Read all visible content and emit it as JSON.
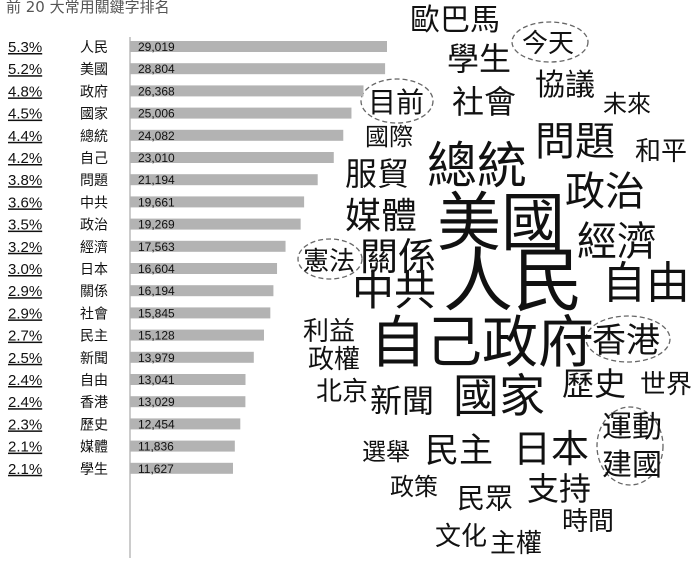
{
  "title": "前 20 大常用關鍵字排名",
  "chart_data": {
    "type": "bar",
    "orientation": "horizontal",
    "categories": [
      "人民",
      "美國",
      "政府",
      "國家",
      "總統",
      "自己",
      "問題",
      "中共",
      "政治",
      "經濟",
      "日本",
      "關係",
      "社會",
      "民主",
      "新聞",
      "自由",
      "香港",
      "歷史",
      "媒體",
      "學生"
    ],
    "values": [
      29019,
      28804,
      26368,
      25006,
      24082,
      23010,
      21194,
      19661,
      19269,
      17563,
      16604,
      16194,
      15845,
      15128,
      13979,
      13041,
      13029,
      12454,
      11836,
      11627
    ],
    "value_labels": [
      "29,019",
      "28,804",
      "26,368",
      "25,006",
      "24,082",
      "23,010",
      "21,194",
      "19,661",
      "19,269",
      "17,563",
      "16,604",
      "16,194",
      "15,845",
      "15,128",
      "13,979",
      "13,041",
      "13,029",
      "12,454",
      "11,836",
      "11,627"
    ],
    "shares": [
      {
        "value": 5.3,
        "label": "5.3%"
      },
      {
        "value": 5.2,
        "label": "5.2%"
      },
      {
        "value": 4.8,
        "label": "4.8%"
      },
      {
        "value": 4.5,
        "label": "4.5%"
      },
      {
        "value": 4.4,
        "label": "4.4%"
      },
      {
        "value": 4.2,
        "label": "4.2%"
      },
      {
        "value": 3.8,
        "label": "3.8%"
      },
      {
        "value": 3.6,
        "label": "3.6%"
      },
      {
        "value": 3.5,
        "label": "3.5%"
      },
      {
        "value": 3.2,
        "label": "3.2%"
      },
      {
        "value": 3.0,
        "label": "3.0%"
      },
      {
        "value": 2.9,
        "label": "2.9%"
      },
      {
        "value": 2.9,
        "label": "2.9%"
      },
      {
        "value": 2.7,
        "label": "2.7%"
      },
      {
        "value": 2.5,
        "label": "2.5%"
      },
      {
        "value": 2.4,
        "label": "2.4%"
      },
      {
        "value": 2.4,
        "label": "2.4%"
      },
      {
        "value": 2.3,
        "label": "2.3%"
      },
      {
        "value": 2.1,
        "label": "2.1%"
      },
      {
        "value": 2.1,
        "label": "2.1%"
      }
    ],
    "color": "#b3b3b3"
  },
  "word_cloud": [
    "歐巴馬",
    "學生",
    "今天",
    "協議",
    "未來",
    "目前",
    "社會",
    "國際",
    "問題",
    "和平",
    "總統",
    "服貿",
    "政治",
    "媒體",
    "美國",
    "經濟",
    "憲法",
    "關係",
    "人民",
    "自由",
    "中共",
    "利益",
    "自己政府",
    "香港",
    "政權",
    "北京",
    "新聞",
    "國家",
    "歷史",
    "世界",
    "運動",
    "選舉",
    "民主",
    "日本",
    "建國",
    "政策",
    "民眾",
    "支持",
    "時間",
    "文化",
    "主權"
  ]
}
